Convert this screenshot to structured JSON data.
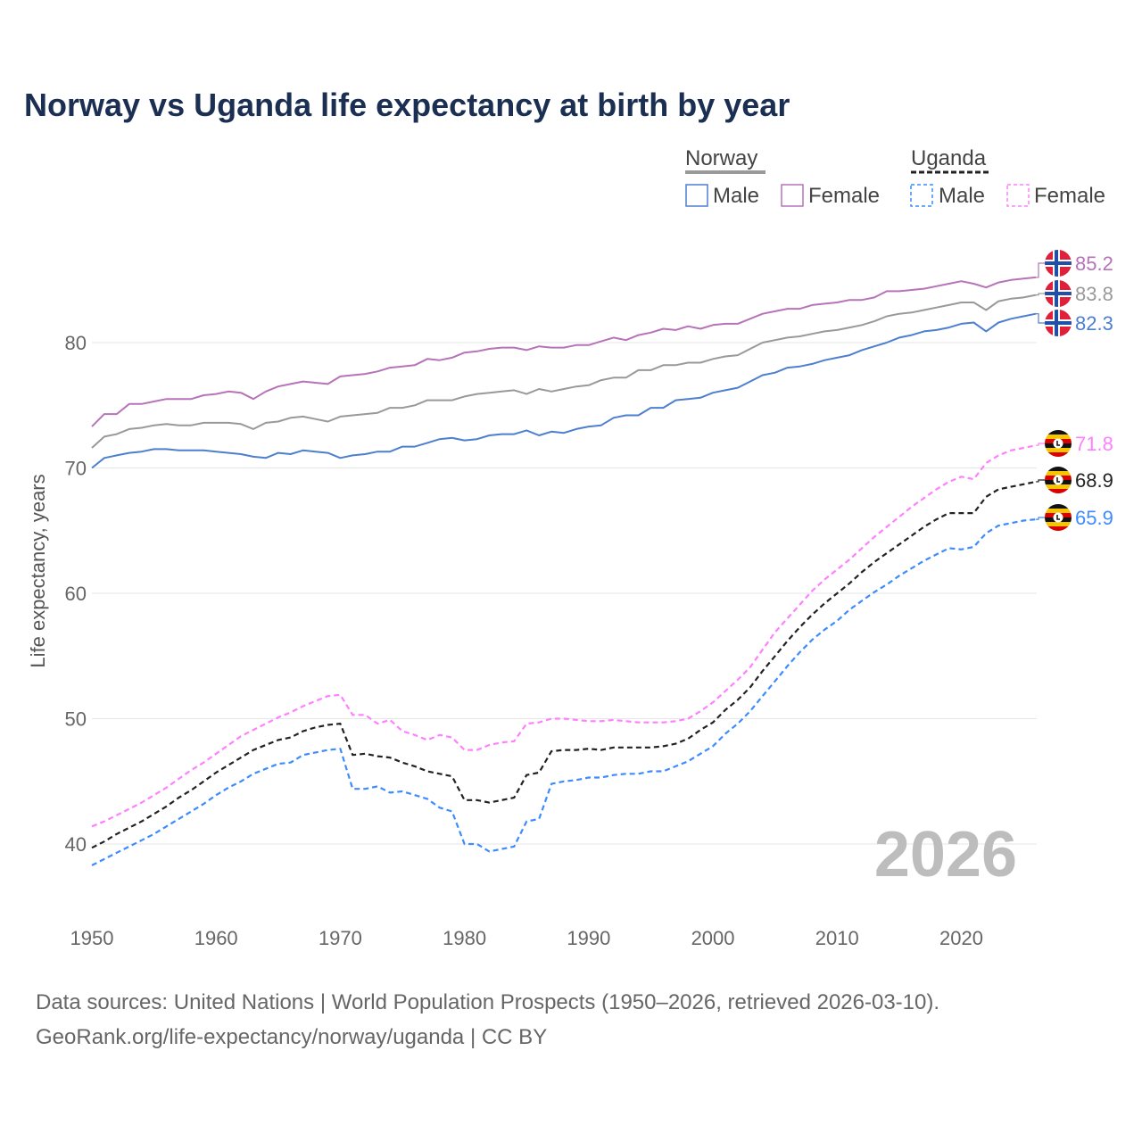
{
  "chart_data": {
    "type": "line",
    "title": "Norway vs Uganda life expectancy at birth by year",
    "xlabel": "",
    "ylabel": "Life expectancy, years",
    "xlim": [
      1950,
      2026
    ],
    "ylim": [
      35,
      88
    ],
    "x_ticks": [
      "1950",
      "1960",
      "1970",
      "1980",
      "1990",
      "2000",
      "2010",
      "2020"
    ],
    "y_ticks": [
      "40",
      "50",
      "60",
      "70",
      "80"
    ],
    "grid": "horizontal",
    "legend_placement": "top-right",
    "legend": {
      "groups": [
        {
          "name": "Norway",
          "items": [
            "Male",
            "Female"
          ]
        },
        {
          "name": "Uganda",
          "items": [
            "Male",
            "Female"
          ]
        }
      ]
    },
    "watermark_year": "2026",
    "x_start": 1950,
    "series": [
      {
        "name": "Norway Female",
        "country": "Norway",
        "label": "85.2",
        "color": "#b673b8",
        "dashed": false,
        "flag": "norway",
        "values": [
          73.3,
          74.3,
          74.3,
          75.1,
          75.1,
          75.3,
          75.5,
          75.5,
          75.5,
          75.8,
          75.9,
          76.1,
          76.0,
          75.5,
          76.1,
          76.5,
          76.7,
          76.9,
          76.8,
          76.7,
          77.3,
          77.4,
          77.5,
          77.7,
          78.0,
          78.1,
          78.2,
          78.7,
          78.6,
          78.8,
          79.2,
          79.3,
          79.5,
          79.6,
          79.6,
          79.4,
          79.7,
          79.6,
          79.6,
          79.8,
          79.8,
          80.1,
          80.4,
          80.2,
          80.6,
          80.8,
          81.1,
          81.0,
          81.3,
          81.1,
          81.4,
          81.5,
          81.5,
          81.9,
          82.3,
          82.5,
          82.7,
          82.7,
          83.0,
          83.1,
          83.2,
          83.4,
          83.4,
          83.6,
          84.1,
          84.1,
          84.2,
          84.3,
          84.5,
          84.7,
          84.9,
          84.7,
          84.4,
          84.8,
          85.0,
          85.1,
          85.2
        ]
      },
      {
        "name": "Norway",
        "country": "Norway",
        "label": "83.8",
        "color": "#999999",
        "dashed": false,
        "flag": "norway",
        "values": [
          71.6,
          72.5,
          72.7,
          73.1,
          73.2,
          73.4,
          73.5,
          73.4,
          73.4,
          73.6,
          73.6,
          73.6,
          73.5,
          73.1,
          73.6,
          73.7,
          74.0,
          74.1,
          73.9,
          73.7,
          74.1,
          74.2,
          74.3,
          74.4,
          74.8,
          74.8,
          75.0,
          75.4,
          75.4,
          75.4,
          75.7,
          75.9,
          76.0,
          76.1,
          76.2,
          75.9,
          76.3,
          76.1,
          76.3,
          76.5,
          76.6,
          77.0,
          77.2,
          77.2,
          77.8,
          77.8,
          78.2,
          78.2,
          78.4,
          78.4,
          78.7,
          78.9,
          79.0,
          79.5,
          80.0,
          80.2,
          80.4,
          80.5,
          80.7,
          80.9,
          81.0,
          81.2,
          81.4,
          81.7,
          82.1,
          82.3,
          82.4,
          82.6,
          82.8,
          83.0,
          83.2,
          83.2,
          82.6,
          83.3,
          83.5,
          83.6,
          83.8
        ]
      },
      {
        "name": "Norway Male",
        "country": "Norway",
        "label": "82.3",
        "color": "#4d7fcf",
        "dashed": false,
        "flag": "norway",
        "values": [
          70.0,
          70.8,
          71.0,
          71.2,
          71.3,
          71.5,
          71.5,
          71.4,
          71.4,
          71.4,
          71.3,
          71.2,
          71.1,
          70.9,
          70.8,
          71.2,
          71.1,
          71.4,
          71.3,
          71.2,
          70.8,
          71.0,
          71.1,
          71.3,
          71.3,
          71.7,
          71.7,
          72.0,
          72.3,
          72.4,
          72.2,
          72.3,
          72.6,
          72.7,
          72.7,
          73.0,
          72.6,
          72.9,
          72.8,
          73.1,
          73.3,
          73.4,
          74.0,
          74.2,
          74.2,
          74.8,
          74.8,
          75.4,
          75.5,
          75.6,
          76.0,
          76.2,
          76.4,
          76.9,
          77.4,
          77.6,
          78.0,
          78.1,
          78.3,
          78.6,
          78.8,
          79.0,
          79.4,
          79.7,
          80.0,
          80.4,
          80.6,
          80.9,
          81.0,
          81.2,
          81.5,
          81.6,
          80.9,
          81.6,
          81.9,
          82.1,
          82.3
        ]
      },
      {
        "name": "Uganda Female",
        "country": "Uganda",
        "label": "71.8",
        "color": "#ff80ff",
        "dashed": true,
        "flag": "uganda",
        "values": [
          41.4,
          41.8,
          42.3,
          42.8,
          43.3,
          43.9,
          44.5,
          45.2,
          45.9,
          46.5,
          47.2,
          47.9,
          48.6,
          49.1,
          49.6,
          50.1,
          50.5,
          51.0,
          51.4,
          51.8,
          51.9,
          50.3,
          50.3,
          49.6,
          49.9,
          49.0,
          48.7,
          48.3,
          48.7,
          48.5,
          47.5,
          47.5,
          47.9,
          48.1,
          48.2,
          49.6,
          49.7,
          50.0,
          50.0,
          49.9,
          49.8,
          49.8,
          49.9,
          49.8,
          49.7,
          49.7,
          49.7,
          49.8,
          50.0,
          50.6,
          51.3,
          52.2,
          53.1,
          54.1,
          55.5,
          56.9,
          58.0,
          59.1,
          60.2,
          61.1,
          61.9,
          62.7,
          63.6,
          64.5,
          65.3,
          66.1,
          66.9,
          67.6,
          68.3,
          68.9,
          69.3,
          69.1,
          70.4,
          71.0,
          71.4,
          71.6,
          71.8
        ]
      },
      {
        "name": "Uganda",
        "country": "Uganda",
        "label": "68.9",
        "color": "#222222",
        "dashed": true,
        "flag": "uganda",
        "values": [
          39.7,
          40.2,
          40.8,
          41.3,
          41.8,
          42.4,
          43.0,
          43.7,
          44.3,
          45.0,
          45.7,
          46.3,
          46.9,
          47.5,
          47.9,
          48.3,
          48.5,
          49.0,
          49.3,
          49.5,
          49.6,
          47.1,
          47.2,
          47.0,
          46.9,
          46.5,
          46.2,
          45.8,
          45.6,
          45.4,
          43.5,
          43.5,
          43.3,
          43.5,
          43.7,
          45.5,
          45.7,
          47.4,
          47.5,
          47.5,
          47.6,
          47.5,
          47.7,
          47.7,
          47.7,
          47.7,
          47.8,
          48.0,
          48.4,
          49.1,
          49.7,
          50.7,
          51.5,
          52.5,
          53.8,
          55.0,
          56.2,
          57.3,
          58.3,
          59.2,
          60.0,
          60.8,
          61.7,
          62.5,
          63.2,
          63.9,
          64.6,
          65.3,
          65.9,
          66.4,
          66.4,
          66.4,
          67.7,
          68.3,
          68.5,
          68.7,
          68.9
        ]
      },
      {
        "name": "Uganda Male",
        "country": "Uganda",
        "label": "65.9",
        "color": "#3d8bff",
        "dashed": true,
        "flag": "uganda",
        "values": [
          38.3,
          38.8,
          39.3,
          39.8,
          40.3,
          40.8,
          41.4,
          42.0,
          42.6,
          43.2,
          43.9,
          44.5,
          45.0,
          45.6,
          46.0,
          46.4,
          46.5,
          47.1,
          47.3,
          47.5,
          47.6,
          44.4,
          44.4,
          44.6,
          44.1,
          44.2,
          43.9,
          43.6,
          42.9,
          42.6,
          40.0,
          40.0,
          39.4,
          39.6,
          39.8,
          41.8,
          42.0,
          44.8,
          45.0,
          45.1,
          45.3,
          45.3,
          45.5,
          45.6,
          45.6,
          45.8,
          45.8,
          46.2,
          46.6,
          47.2,
          47.8,
          48.8,
          49.6,
          50.6,
          51.8,
          53.0,
          54.2,
          55.3,
          56.3,
          57.1,
          57.8,
          58.7,
          59.4,
          60.1,
          60.7,
          61.4,
          62.0,
          62.6,
          63.1,
          63.6,
          63.5,
          63.7,
          64.8,
          65.4,
          65.6,
          65.8,
          65.9
        ]
      }
    ],
    "source_lines": [
      "Data sources: United Nations | World Population Prospects (1950–2026, retrieved 2026-03-10).",
      "GeoRank.org/life-expectancy/norway/uganda | CC BY"
    ]
  }
}
